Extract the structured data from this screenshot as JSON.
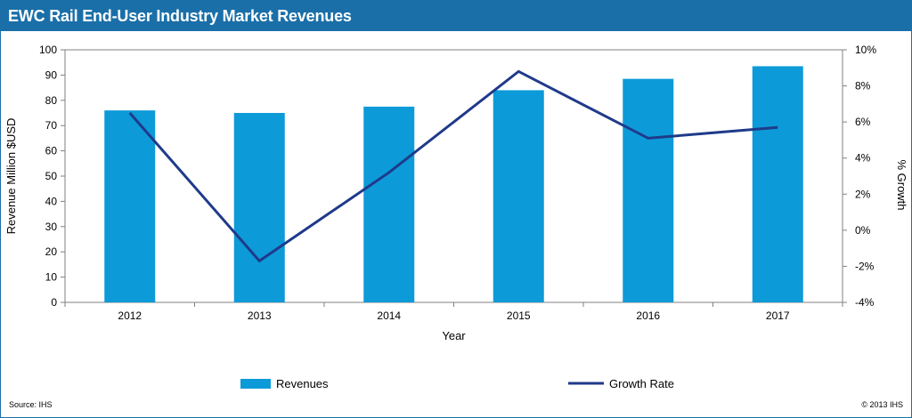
{
  "title": "EWC Rail End-User Industry Market Revenues",
  "source": "Source: IHS",
  "copyright": "© 2013 IHS",
  "colors": {
    "bar": "#0d9ad8",
    "line": "#1f3a8a",
    "header": "#1a6fa8"
  },
  "chart_data": {
    "type": "bar",
    "categories": [
      "2012",
      "2013",
      "2014",
      "2015",
      "2016",
      "2017"
    ],
    "series": [
      {
        "name": "Revenues",
        "type": "bar",
        "axis": "left",
        "values": [
          76,
          75,
          77.5,
          84,
          88.5,
          93.5
        ]
      },
      {
        "name": "Growth Rate",
        "type": "line",
        "axis": "right",
        "values": [
          6.5,
          -1.7,
          3.2,
          8.8,
          5.1,
          5.7
        ]
      }
    ],
    "xlabel": "Year",
    "ylabel": "Revenue Million $USD",
    "y2label": "% Growth",
    "ylim": [
      0,
      100
    ],
    "y2lim": [
      -4,
      10
    ],
    "yticks": [
      "0",
      "10",
      "20",
      "30",
      "40",
      "50",
      "60",
      "70",
      "80",
      "90",
      "100"
    ],
    "y2ticks": [
      "-4%",
      "-2%",
      "0%",
      "2%",
      "4%",
      "6%",
      "8%",
      "10%"
    ],
    "grid": false,
    "legend": "bottom"
  }
}
